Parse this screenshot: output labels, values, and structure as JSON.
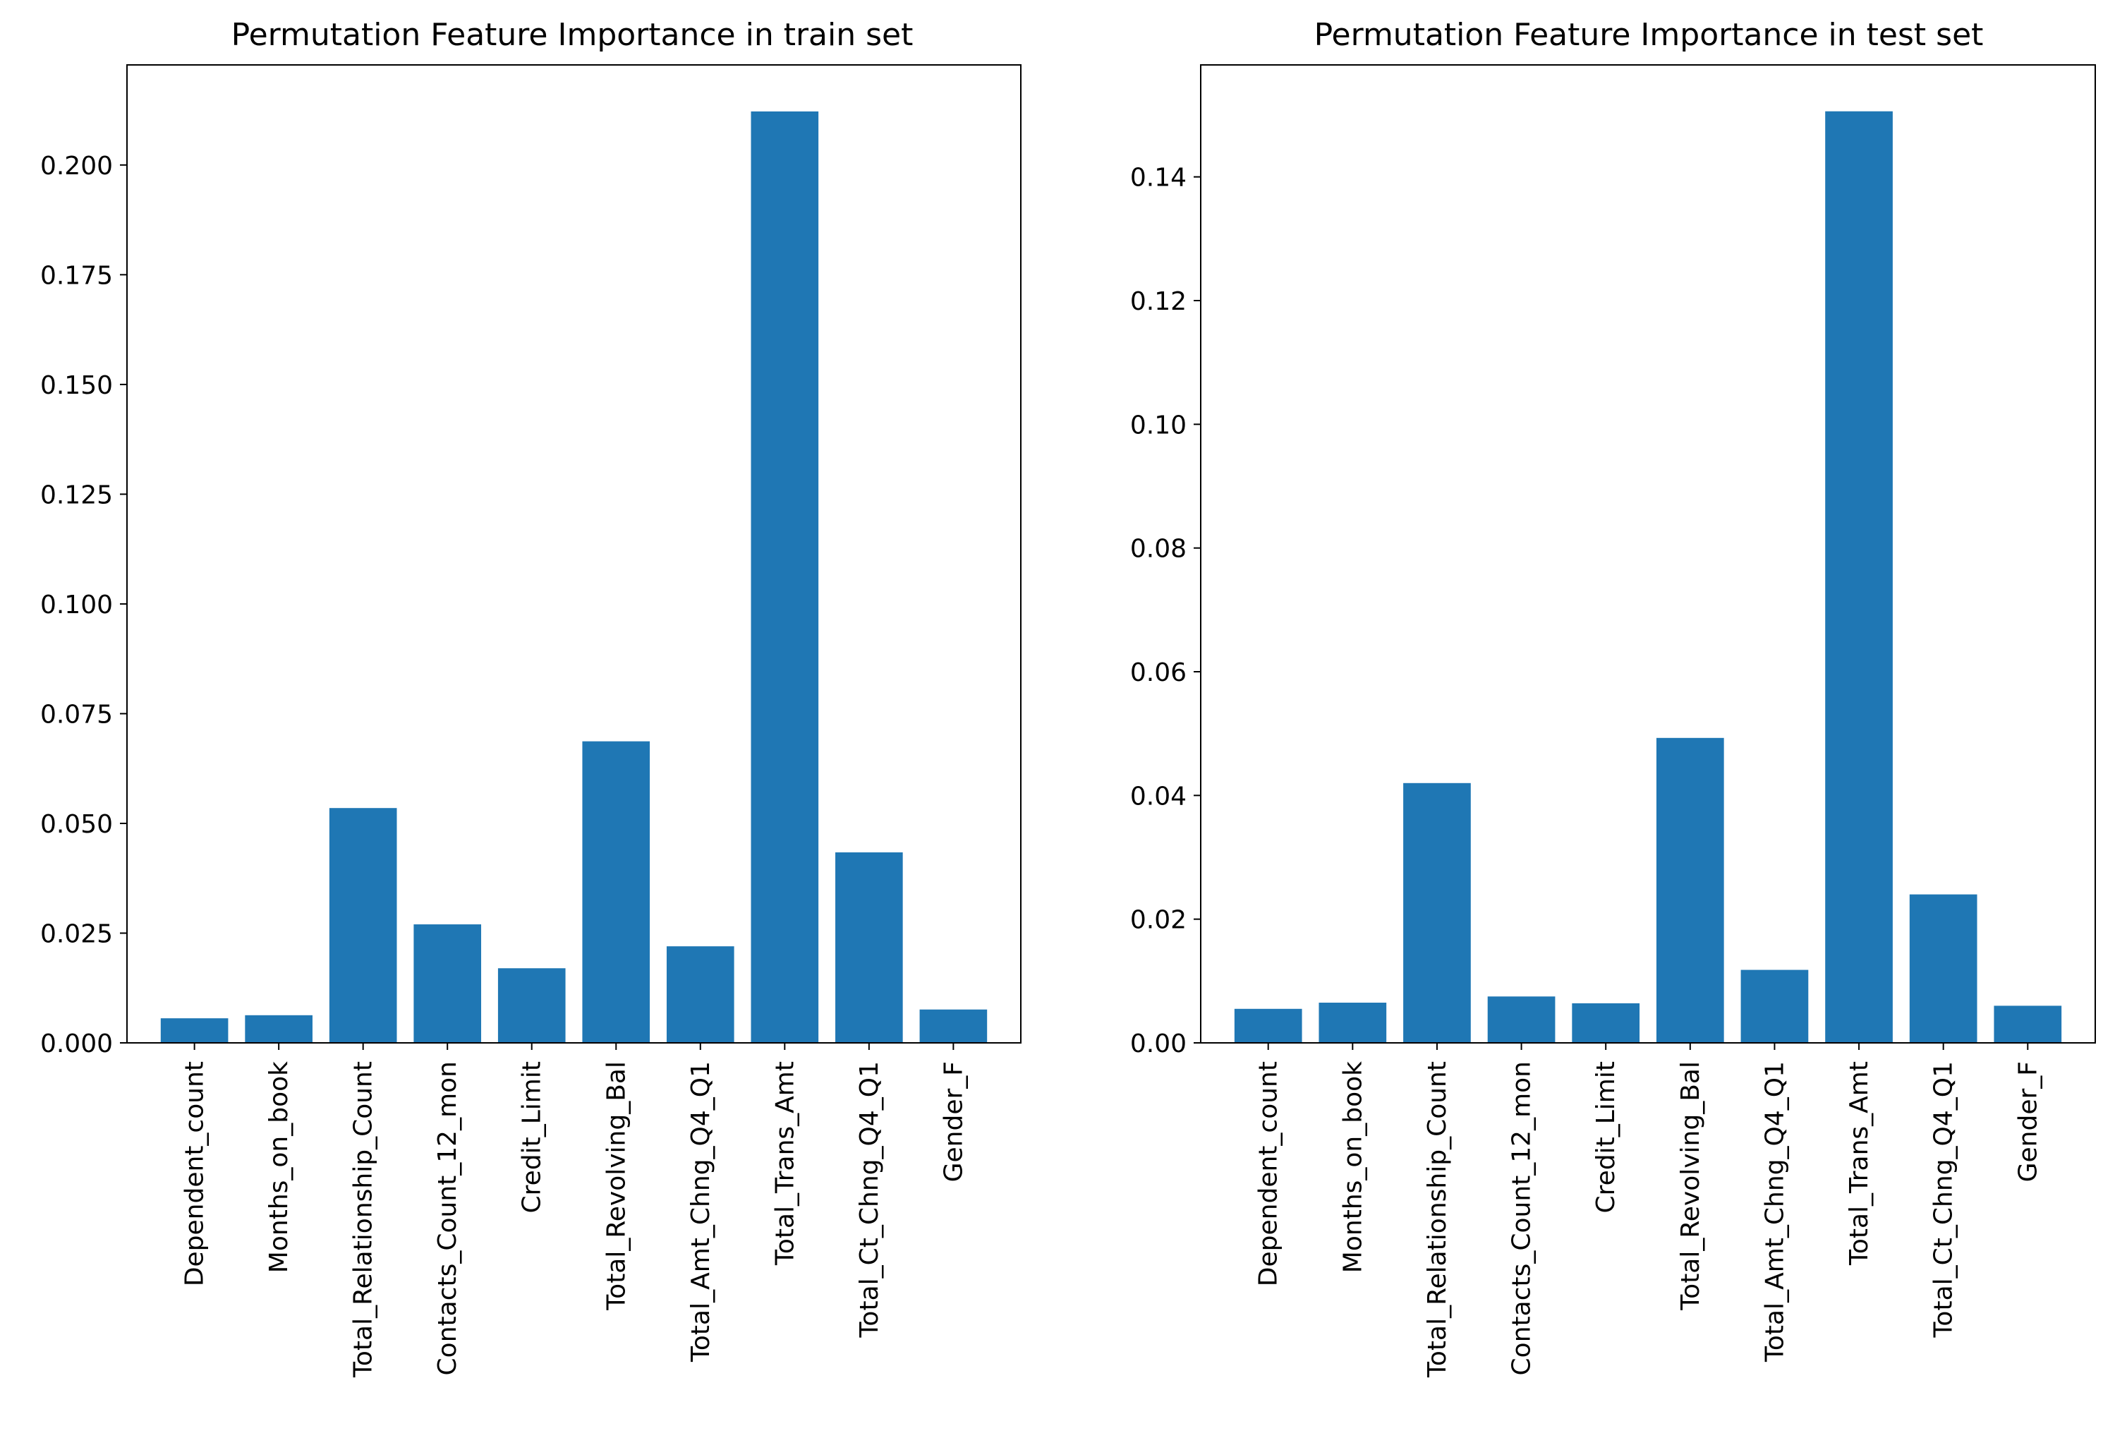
{
  "chart_data": [
    {
      "type": "bar",
      "title": "Permutation Feature Importance in train set",
      "xlabel": "",
      "ylabel": "",
      "categories": [
        "Dependent_count",
        "Months_on_book",
        "Total_Relationship_Count",
        "Contacts_Count_12_mon",
        "Credit_Limit",
        "Total_Revolving_Bal",
        "Total_Amt_Chng_Q4_Q1",
        "Total_Trans_Amt",
        "Total_Ct_Chng_Q4_Q1",
        "Gender_F"
      ],
      "values": [
        0.0056,
        0.0063,
        0.0535,
        0.027,
        0.017,
        0.0687,
        0.022,
        0.2122,
        0.0434,
        0.0076
      ],
      "ylim": [
        0,
        0.2228
      ],
      "yticks": [
        0.0,
        0.025,
        0.05,
        0.075,
        0.1,
        0.125,
        0.15,
        0.175,
        0.2
      ],
      "ytick_labels": [
        "0.000",
        "0.025",
        "0.050",
        "0.075",
        "0.100",
        "0.125",
        "0.150",
        "0.175",
        "0.200"
      ],
      "bar_color": "#1f77b4",
      "grid": false,
      "legend": "none"
    },
    {
      "type": "bar",
      "title": "Permutation Feature Importance in test set",
      "xlabel": "",
      "ylabel": "",
      "categories": [
        "Dependent_count",
        "Months_on_book",
        "Total_Relationship_Count",
        "Contacts_Count_12_mon",
        "Credit_Limit",
        "Total_Revolving_Bal",
        "Total_Amt_Chng_Q4_Q1",
        "Total_Trans_Amt",
        "Total_Ct_Chng_Q4_Q1",
        "Gender_F"
      ],
      "values": [
        0.0055,
        0.0065,
        0.042,
        0.0075,
        0.0064,
        0.0493,
        0.0118,
        0.1506,
        0.024,
        0.006
      ],
      "ylim": [
        0,
        0.1581
      ],
      "yticks": [
        0.0,
        0.02,
        0.04,
        0.06,
        0.08,
        0.1,
        0.12,
        0.14
      ],
      "ytick_labels": [
        "0.00",
        "0.02",
        "0.04",
        "0.06",
        "0.08",
        "0.10",
        "0.12",
        "0.14"
      ],
      "bar_color": "#1f77b4",
      "grid": false,
      "legend": "none"
    }
  ]
}
